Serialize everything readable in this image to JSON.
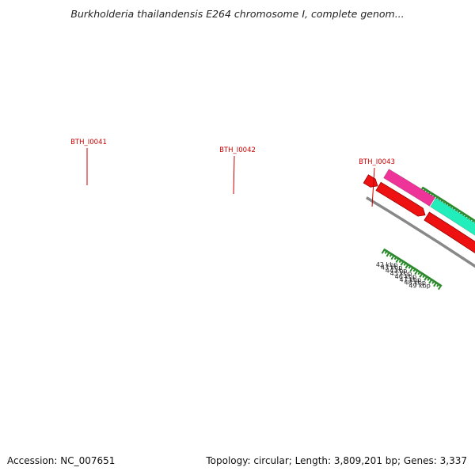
{
  "title": "Burkholderia thailandensis E264 chromosome I, complete genom...",
  "footer": {
    "accession": "Accession: NC_007651",
    "summary": "Topology: circular; Length: 3,809,201 bp; Genes: 3,337"
  },
  "colors": {
    "background": "#ffffff",
    "backbone": "#888888",
    "tick": "#2e8b2e",
    "cds_red": "#ee1111",
    "gene_magenta": "#ee3399",
    "gene_cyan": "#22eebb",
    "gene_olive": "#6b8e23",
    "label_red": "#cc0000",
    "kbp_label": "#222222"
  },
  "scale": {
    "labels": [
      "42 kbp",
      "43 kbp",
      "44 kbp",
      "45 kbp",
      "46 kbp",
      "47 kbp",
      "48 kbp",
      "49 kbp"
    ]
  },
  "genes": [
    {
      "label": "BTH_I0041",
      "color": "gene_magenta"
    },
    {
      "label": "BTH_I0042",
      "color": "gene_cyan"
    },
    {
      "label": "BTH_I0043",
      "color": "gene_olive"
    }
  ]
}
